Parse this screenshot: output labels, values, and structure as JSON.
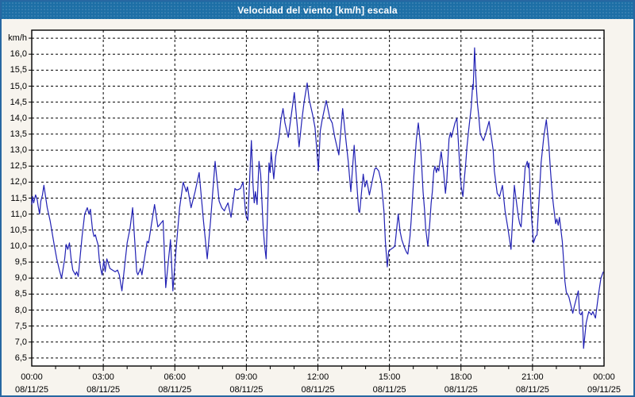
{
  "window": {
    "title": "Velocidad del viento [km/h] escala"
  },
  "colors": {
    "titlebar_bg": "#1d6fa6",
    "title_text": "#ffffff",
    "frame_border": "#2767a2",
    "page_bg": "#f7f4ee",
    "plot_bg": "#ffffff",
    "grid": "#000000",
    "axis_text": "#000000",
    "line": "#2121b4"
  },
  "chart_data": {
    "type": "line",
    "title": "Velocidad del viento [km/h] escala",
    "y_unit_label": "km/h",
    "decimal_separator": ",",
    "grid": "dashed",
    "legend": "none",
    "ylim": [
      6.25,
      16.75
    ],
    "xlim_hours": [
      0,
      24
    ],
    "y_tick_values": [
      16.5,
      16.0,
      15.5,
      15.0,
      14.5,
      14.0,
      13.5,
      13.0,
      12.5,
      12.0,
      11.5,
      11.0,
      10.5,
      10.0,
      9.5,
      9.0,
      8.5,
      8.0,
      7.5,
      7.0,
      6.5
    ],
    "y_tick_labels": [
      "km/h",
      "16,0",
      "15,5",
      "15,0",
      "14,5",
      "14,0",
      "13,5",
      "13,0",
      "12,5",
      "12,0",
      "11,5",
      "11,0",
      "10,5",
      "10,0",
      "9,5",
      "9,0",
      "8,5",
      "8,0",
      "7,5",
      "7,0",
      "6,5"
    ],
    "x_ticks": [
      {
        "h": 0,
        "time": "00:00",
        "date": "08/11/25"
      },
      {
        "h": 3,
        "time": "03:00",
        "date": "08/11/25"
      },
      {
        "h": 6,
        "time": "06:00",
        "date": "08/11/25"
      },
      {
        "h": 9,
        "time": "09:00",
        "date": "08/11/25"
      },
      {
        "h": 12,
        "time": "12:00",
        "date": "08/11/25"
      },
      {
        "h": 15,
        "time": "15:00",
        "date": "08/11/25"
      },
      {
        "h": 18,
        "time": "18:00",
        "date": "08/11/25"
      },
      {
        "h": 21,
        "time": "21:00",
        "date": "08/11/25"
      },
      {
        "h": 24,
        "time": "00:00",
        "date": "09/11/25"
      }
    ],
    "x_minor_tick_every_hours": 1,
    "series": [
      {
        "name": "Velocidad del viento",
        "points": [
          [
            0,
            11.3
          ],
          [
            0.03,
            11.55
          ],
          [
            0.08,
            11.35
          ],
          [
            0.16,
            11.6
          ],
          [
            0.23,
            11.45
          ],
          [
            0.27,
            11.25
          ],
          [
            0.33,
            11.0
          ],
          [
            0.38,
            11.4
          ],
          [
            0.45,
            11.6
          ],
          [
            0.51,
            11.9
          ],
          [
            0.57,
            11.6
          ],
          [
            0.65,
            11.2
          ],
          [
            0.77,
            10.8
          ],
          [
            0.94,
            10.05
          ],
          [
            1.05,
            9.6
          ],
          [
            1.16,
            9.25
          ],
          [
            1.25,
            9.0
          ],
          [
            1.38,
            9.6
          ],
          [
            1.44,
            10.05
          ],
          [
            1.51,
            9.9
          ],
          [
            1.58,
            10.1
          ],
          [
            1.65,
            9.6
          ],
          [
            1.72,
            9.25
          ],
          [
            1.83,
            9.1
          ],
          [
            1.88,
            9.2
          ],
          [
            1.95,
            9.05
          ],
          [
            2.11,
            10.3
          ],
          [
            2.22,
            11.0
          ],
          [
            2.33,
            11.2
          ],
          [
            2.4,
            11.0
          ],
          [
            2.46,
            11.15
          ],
          [
            2.55,
            10.5
          ],
          [
            2.61,
            10.3
          ],
          [
            2.67,
            10.35
          ],
          [
            2.72,
            10.2
          ],
          [
            2.78,
            10.05
          ],
          [
            2.83,
            9.6
          ],
          [
            2.89,
            9.3
          ],
          [
            2.95,
            9.1
          ],
          [
            3.02,
            9.55
          ],
          [
            3.08,
            9.2
          ],
          [
            3.15,
            9.6
          ],
          [
            3.28,
            9.3
          ],
          [
            3.5,
            9.2
          ],
          [
            3.6,
            9.25
          ],
          [
            3.67,
            9.1
          ],
          [
            3.78,
            8.6
          ],
          [
            4.0,
            10.1
          ],
          [
            4.12,
            10.55
          ],
          [
            4.23,
            11.2
          ],
          [
            4.4,
            9.2
          ],
          [
            4.45,
            9.1
          ],
          [
            4.56,
            9.3
          ],
          [
            4.62,
            9.1
          ],
          [
            4.84,
            10.15
          ],
          [
            4.9,
            10.1
          ],
          [
            5.15,
            11.3
          ],
          [
            5.29,
            10.6
          ],
          [
            5.51,
            10.8
          ],
          [
            5.62,
            8.7
          ],
          [
            5.82,
            10.2
          ],
          [
            5.92,
            8.6
          ],
          [
            6.05,
            9.9
          ],
          [
            6.2,
            11.2
          ],
          [
            6.35,
            12.0
          ],
          [
            6.48,
            11.7
          ],
          [
            6.53,
            11.85
          ],
          [
            6.68,
            11.2
          ],
          [
            6.85,
            11.7
          ],
          [
            7.02,
            12.3
          ],
          [
            7.2,
            10.8
          ],
          [
            7.36,
            9.6
          ],
          [
            7.5,
            10.8
          ],
          [
            7.69,
            12.65
          ],
          [
            7.86,
            11.4
          ],
          [
            7.97,
            11.2
          ],
          [
            8.08,
            11.1
          ],
          [
            8.13,
            11.2
          ],
          [
            8.23,
            11.35
          ],
          [
            8.36,
            10.9
          ],
          [
            8.52,
            11.8
          ],
          [
            8.6,
            11.75
          ],
          [
            8.75,
            11.8
          ],
          [
            8.86,
            12.0
          ],
          [
            8.97,
            11.0
          ],
          [
            9.06,
            10.8
          ],
          [
            9.21,
            13.3
          ],
          [
            9.28,
            11.9
          ],
          [
            9.33,
            11.35
          ],
          [
            9.38,
            11.7
          ],
          [
            9.45,
            11.3
          ],
          [
            9.53,
            12.65
          ],
          [
            9.6,
            12.25
          ],
          [
            9.7,
            10.65
          ],
          [
            9.76,
            10.05
          ],
          [
            9.83,
            9.6
          ],
          [
            9.95,
            12.6
          ],
          [
            10.0,
            12.3
          ],
          [
            10.04,
            12.95
          ],
          [
            10.15,
            12.1
          ],
          [
            10.23,
            12.8
          ],
          [
            10.37,
            13.4
          ],
          [
            10.45,
            13.95
          ],
          [
            10.54,
            14.3
          ],
          [
            10.62,
            13.85
          ],
          [
            10.76,
            13.4
          ],
          [
            11.01,
            14.8
          ],
          [
            11.21,
            13.1
          ],
          [
            11.32,
            13.9
          ],
          [
            11.42,
            14.5
          ],
          [
            11.55,
            15.1
          ],
          [
            11.63,
            14.6
          ],
          [
            11.78,
            14.1
          ],
          [
            11.88,
            13.7
          ],
          [
            11.95,
            13.05
          ],
          [
            12.02,
            12.35
          ],
          [
            12.1,
            13.6
          ],
          [
            12.18,
            13.95
          ],
          [
            12.35,
            14.55
          ],
          [
            12.5,
            14.0
          ],
          [
            12.6,
            13.85
          ],
          [
            12.71,
            13.4
          ],
          [
            12.88,
            12.85
          ],
          [
            13.04,
            14.3
          ],
          [
            13.15,
            13.5
          ],
          [
            13.27,
            12.65
          ],
          [
            13.38,
            11.7
          ],
          [
            13.52,
            13.15
          ],
          [
            13.71,
            11.1
          ],
          [
            13.75,
            11.05
          ],
          [
            13.9,
            12.25
          ],
          [
            13.97,
            11.85
          ],
          [
            14.05,
            12.05
          ],
          [
            14.16,
            11.6
          ],
          [
            14.38,
            12.4
          ],
          [
            14.44,
            12.45
          ],
          [
            14.55,
            12.35
          ],
          [
            14.66,
            12.0
          ],
          [
            14.77,
            11.1
          ],
          [
            14.83,
            10.15
          ],
          [
            14.91,
            9.35
          ],
          [
            14.97,
            9.85
          ],
          [
            15.06,
            9.9
          ],
          [
            15.16,
            9.95
          ],
          [
            15.23,
            10.0
          ],
          [
            15.37,
            11.0
          ],
          [
            15.45,
            10.45
          ],
          [
            15.52,
            10.2
          ],
          [
            15.63,
            9.95
          ],
          [
            15.72,
            9.8
          ],
          [
            15.77,
            9.75
          ],
          [
            15.86,
            10.3
          ],
          [
            15.91,
            10.8
          ],
          [
            16.02,
            12.15
          ],
          [
            16.13,
            13.35
          ],
          [
            16.21,
            13.85
          ],
          [
            16.3,
            13.2
          ],
          [
            16.36,
            12.4
          ],
          [
            16.41,
            11.7
          ],
          [
            16.47,
            11.15
          ],
          [
            16.52,
            10.55
          ],
          [
            16.61,
            10.0
          ],
          [
            16.69,
            10.7
          ],
          [
            16.75,
            11.35
          ],
          [
            16.8,
            11.7
          ],
          [
            16.86,
            12.35
          ],
          [
            16.91,
            12.5
          ],
          [
            16.97,
            12.3
          ],
          [
            17.01,
            12.45
          ],
          [
            17.07,
            12.35
          ],
          [
            17.17,
            12.95
          ],
          [
            17.27,
            12.35
          ],
          [
            17.35,
            11.65
          ],
          [
            17.41,
            12.1
          ],
          [
            17.5,
            13.35
          ],
          [
            17.56,
            13.55
          ],
          [
            17.6,
            13.4
          ],
          [
            17.7,
            13.7
          ],
          [
            17.75,
            13.85
          ],
          [
            17.83,
            14.0
          ],
          [
            17.88,
            13.4
          ],
          [
            17.92,
            12.9
          ],
          [
            17.97,
            12.2
          ],
          [
            18.01,
            11.85
          ],
          [
            18.08,
            11.55
          ],
          [
            18.14,
            12.1
          ],
          [
            18.2,
            12.6
          ],
          [
            18.25,
            13.1
          ],
          [
            18.31,
            13.55
          ],
          [
            18.43,
            14.35
          ],
          [
            18.49,
            15.05
          ],
          [
            18.51,
            14.9
          ],
          [
            18.57,
            16.2
          ],
          [
            18.61,
            15.5
          ],
          [
            18.65,
            14.9
          ],
          [
            18.69,
            14.45
          ],
          [
            18.74,
            14.1
          ],
          [
            18.81,
            13.5
          ],
          [
            18.94,
            13.3
          ],
          [
            19.01,
            13.45
          ],
          [
            19.18,
            13.9
          ],
          [
            19.35,
            13.0
          ],
          [
            19.4,
            12.35
          ],
          [
            19.46,
            12.0
          ],
          [
            19.52,
            11.65
          ],
          [
            19.57,
            11.6
          ],
          [
            19.62,
            11.55
          ],
          [
            19.74,
            11.9
          ],
          [
            19.85,
            11.1
          ],
          [
            19.96,
            10.6
          ],
          [
            20.1,
            9.9
          ],
          [
            20.24,
            11.9
          ],
          [
            20.35,
            11.25
          ],
          [
            20.41,
            10.9
          ],
          [
            20.46,
            10.7
          ],
          [
            20.52,
            10.6
          ],
          [
            20.69,
            12.45
          ],
          [
            20.74,
            12.55
          ],
          [
            20.78,
            12.65
          ],
          [
            20.82,
            12.45
          ],
          [
            20.85,
            12.6
          ],
          [
            20.96,
            10.9
          ],
          [
            21.04,
            10.1
          ],
          [
            21.13,
            10.3
          ],
          [
            21.19,
            10.35
          ],
          [
            21.36,
            12.6
          ],
          [
            21.47,
            13.4
          ],
          [
            21.58,
            13.95
          ],
          [
            21.69,
            13.1
          ],
          [
            21.75,
            12.4
          ],
          [
            21.8,
            11.9
          ],
          [
            21.86,
            11.4
          ],
          [
            21.97,
            10.7
          ],
          [
            22.02,
            10.85
          ],
          [
            22.08,
            10.65
          ],
          [
            22.13,
            10.9
          ],
          [
            22.25,
            10.15
          ],
          [
            22.3,
            9.6
          ],
          [
            22.36,
            8.9
          ],
          [
            22.42,
            8.55
          ],
          [
            22.47,
            8.5
          ],
          [
            22.53,
            8.4
          ],
          [
            22.69,
            7.9
          ],
          [
            22.75,
            8.1
          ],
          [
            22.92,
            8.6
          ],
          [
            22.97,
            7.9
          ],
          [
            23.03,
            7.85
          ],
          [
            23.09,
            7.95
          ],
          [
            23.14,
            6.8
          ],
          [
            23.25,
            7.6
          ],
          [
            23.31,
            7.8
          ],
          [
            23.36,
            7.95
          ],
          [
            23.47,
            7.85
          ],
          [
            23.53,
            7.95
          ],
          [
            23.64,
            7.75
          ],
          [
            23.76,
            8.45
          ],
          [
            23.87,
            9.0
          ],
          [
            23.97,
            9.2
          ]
        ]
      }
    ]
  }
}
